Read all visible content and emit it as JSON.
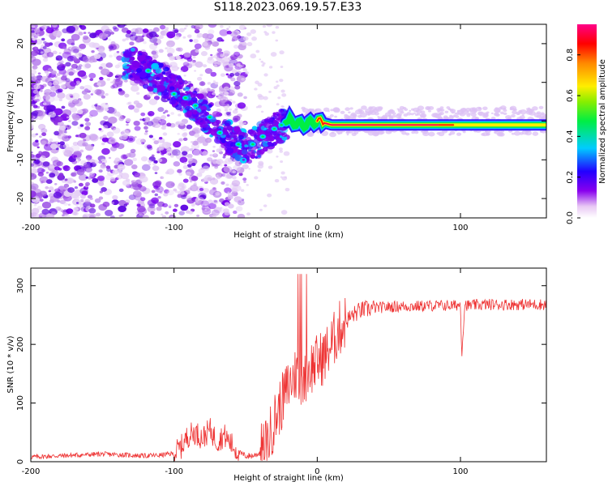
{
  "title": "S118.2023.069.19.57.E33",
  "colors": {
    "series": "#ee3333",
    "frame": "#000000"
  },
  "chart_data": [
    {
      "type": "heatmap",
      "xlabel": "Height of straight line (km)",
      "ylabel": "Frequency (Hz)",
      "xlim": [
        -200,
        160
      ],
      "ylim": [
        -25,
        25
      ],
      "x_ticks": [
        "-200",
        "-100",
        "0",
        "100"
      ],
      "y_ticks": [
        "-20",
        "-10",
        "0",
        "10",
        "20"
      ],
      "colorbar": {
        "label": "Normalized spectral amplitude",
        "range": [
          0,
          0.95
        ],
        "ticks": [
          "0.0",
          "0.2",
          "0.4",
          "0.6",
          "0.8"
        ],
        "colormap": "rainbow (violet-blue-cyan-green-yellow-red-pink)"
      },
      "ridge": {
        "x": [
          -130,
          -110,
          -95,
          -80,
          -65,
          -50,
          -40,
          -30,
          -20,
          -10,
          0,
          10,
          50,
          100,
          160
        ],
        "y": [
          15,
          11,
          7,
          2,
          -3,
          -7,
          -5,
          -2,
          0,
          -1,
          0,
          -1,
          -1,
          -1,
          -1
        ]
      }
    },
    {
      "type": "line",
      "xlabel": "Height of straight line (km)",
      "ylabel": "SNR (10 * v/v)",
      "xlim": [
        -200,
        160
      ],
      "ylim": [
        0,
        330
      ],
      "x_ticks": [
        "-200",
        "-100",
        "0",
        "100"
      ],
      "y_ticks": [
        "0",
        "100",
        "200",
        "300"
      ],
      "series": [
        {
          "x": [
            -200,
            -190,
            -180,
            -170,
            -160,
            -150,
            -140,
            -130,
            -120,
            -110,
            -100,
            -95,
            -90,
            -85,
            -80,
            -75,
            -70,
            -65,
            -60,
            -55,
            -50,
            -45,
            -40,
            -35,
            -30,
            -25,
            -20,
            -15,
            -10,
            -5,
            0,
            5,
            10,
            15,
            20,
            25,
            30,
            40,
            50,
            60,
            70,
            80,
            90,
            95,
            100,
            101,
            103,
            105,
            110,
            120,
            130,
            140,
            150,
            160
          ],
          "values": [
            8,
            9,
            10,
            11,
            12,
            13,
            12,
            11,
            10,
            11,
            14,
            25,
            45,
            50,
            40,
            55,
            35,
            45,
            30,
            15,
            10,
            10,
            15,
            30,
            70,
            100,
            130,
            150,
            140,
            160,
            170,
            180,
            200,
            225,
            240,
            250,
            258,
            262,
            264,
            265,
            265,
            266,
            266,
            266,
            268,
            185,
            270,
            266,
            267,
            268,
            268,
            268,
            268,
            268
          ]
        }
      ]
    }
  ]
}
